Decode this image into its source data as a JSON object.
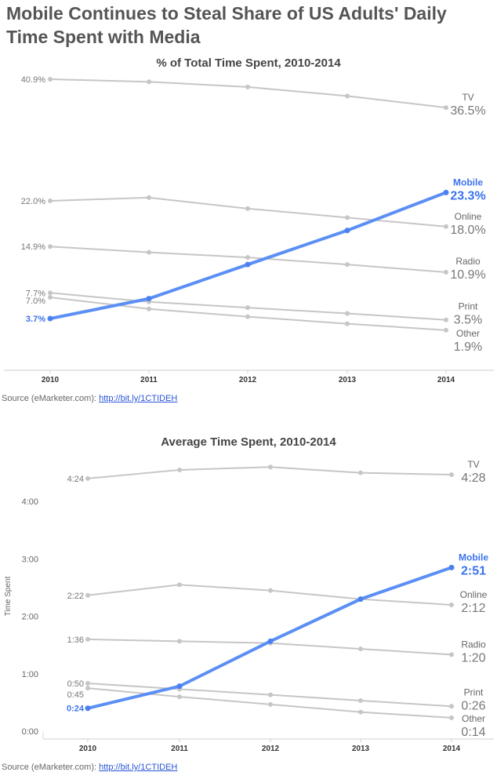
{
  "title": "Mobile Continues to Steal Share of US Adults' Daily Time Spent with Media",
  "source": {
    "prefix": "Source (eMarketer.com): ",
    "link": "http://bit.ly/1CTIDEH"
  },
  "colors": {
    "highlight": "#4a80f0",
    "muted": "#c6c6c6"
  },
  "chart_data": [
    {
      "type": "line",
      "title": "% of Total Time Spent, 2010-2014",
      "xlabel": "",
      "ylabel": "",
      "ylim": [
        0,
        44
      ],
      "x": [
        "2010",
        "2011",
        "2012",
        "2013",
        "2014"
      ],
      "highlight_series": "Mobile",
      "series": [
        {
          "name": "TV",
          "values": [
            40.9,
            40.5,
            39.7,
            38.3,
            36.5
          ],
          "start_label": "40.9%",
          "end_label": "36.5%"
        },
        {
          "name": "Mobile",
          "values": [
            3.7,
            6.8,
            12.1,
            17.4,
            23.3
          ],
          "start_label": "3.7%",
          "end_label": "23.3%"
        },
        {
          "name": "Online",
          "values": [
            22.0,
            22.5,
            20.8,
            19.4,
            18.0
          ],
          "start_label": "22.0%",
          "end_label": "18.0%"
        },
        {
          "name": "Radio",
          "values": [
            14.9,
            14.0,
            13.2,
            12.1,
            10.9
          ],
          "start_label": "14.9%",
          "end_label": "10.9%"
        },
        {
          "name": "Print",
          "values": [
            7.7,
            6.3,
            5.4,
            4.5,
            3.5
          ],
          "start_label": "7.7%",
          "end_label": "3.5%"
        },
        {
          "name": "Other",
          "values": [
            7.0,
            5.2,
            4.0,
            2.9,
            1.9
          ],
          "start_label": "7.0%",
          "end_label": "1.9%"
        }
      ]
    },
    {
      "type": "line",
      "title": "Average Time Spent, 2010-2014",
      "xlabel": "",
      "ylabel": "Time Spent",
      "ylim": [
        0,
        300
      ],
      "y_ticks": [
        "0:00",
        "1:00",
        "2:00",
        "3:00",
        "4:00"
      ],
      "x": [
        "2010",
        "2011",
        "2012",
        "2013",
        "2014"
      ],
      "highlight_series": "Mobile",
      "series": [
        {
          "name": "TV",
          "values": [
            264,
            273,
            276,
            270,
            268
          ],
          "start_label": "4:24",
          "end_label": "4:28"
        },
        {
          "name": "Mobile",
          "values": [
            24,
            47,
            94,
            138,
            171
          ],
          "start_label": "0:24",
          "end_label": "2:51"
        },
        {
          "name": "Online",
          "values": [
            142,
            153,
            147,
            138,
            132
          ],
          "start_label": "2:22",
          "end_label": "2:12"
        },
        {
          "name": "Radio",
          "values": [
            96,
            94,
            92,
            86,
            80
          ],
          "start_label": "1:36",
          "end_label": "1:20"
        },
        {
          "name": "Print",
          "values": [
            50,
            44,
            38,
            32,
            26
          ],
          "start_label": "0:50",
          "end_label": "0:26"
        },
        {
          "name": "Other",
          "values": [
            45,
            36,
            28,
            20,
            14
          ],
          "start_label": "0:45",
          "end_label": "0:14"
        }
      ]
    }
  ]
}
